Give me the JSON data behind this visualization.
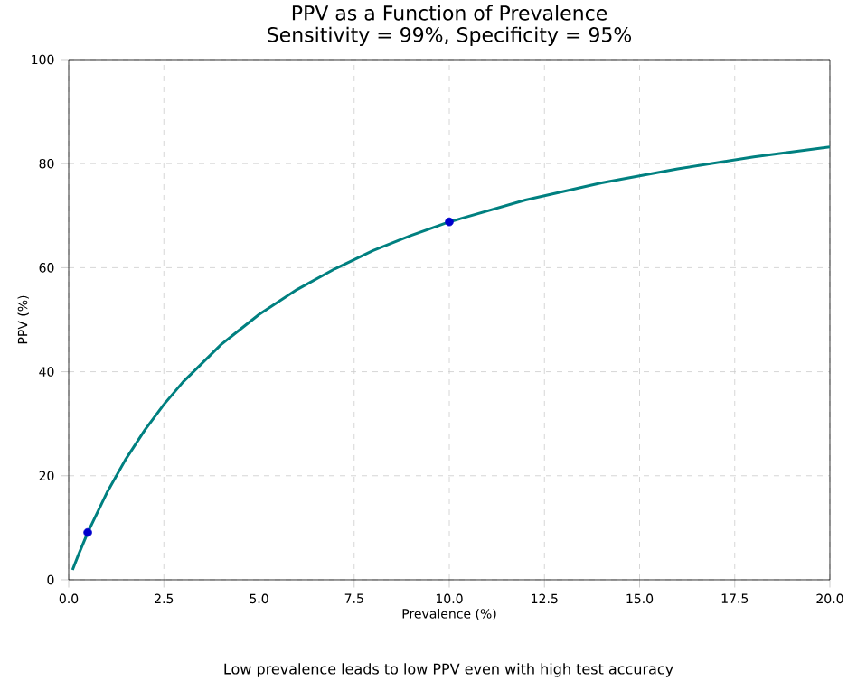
{
  "chart_data": {
    "type": "line",
    "title": "PPV as a Function of Prevalence\nSensitivity = 99%, Specificity = 95%",
    "xlabel": "Prevalence (%)",
    "ylabel": "PPV (%)",
    "x": [
      0.1,
      0.25,
      0.5,
      1,
      1.5,
      2,
      2.5,
      3,
      4,
      5,
      6,
      7,
      8,
      9,
      10,
      12,
      14,
      16,
      18,
      20
    ],
    "series": [
      {
        "color": "#008080",
        "values": [
          1.9,
          4.7,
          9.1,
          16.7,
          23.2,
          28.8,
          33.7,
          38.0,
          45.2,
          51.0,
          55.8,
          59.8,
          63.3,
          66.2,
          68.8,
          73.0,
          76.3,
          79.0,
          81.3,
          83.2
        ]
      },
      {
        "type": "scatter",
        "color": "#0000cd",
        "x": [
          0.5,
          10
        ],
        "values": [
          9.1,
          68.8
        ]
      }
    ],
    "xlim": [
      0,
      20
    ],
    "ylim": [
      0,
      100
    ],
    "xticks": [
      {
        "value": 0,
        "label": "0.0"
      },
      {
        "value": 2.5,
        "label": "2.5"
      },
      {
        "value": 5,
        "label": "5.0"
      },
      {
        "value": 7.5,
        "label": "7.5"
      },
      {
        "value": 10,
        "label": "10.0"
      },
      {
        "value": 12.5,
        "label": "12.5"
      },
      {
        "value": 15,
        "label": "15.0"
      },
      {
        "value": 17.5,
        "label": "17.5"
      },
      {
        "value": 20,
        "label": "20.0"
      }
    ],
    "yticks": [
      0,
      20,
      40,
      60,
      80,
      100
    ],
    "grid": true,
    "annotations": [
      "Low prevalence leads to low PPV even with high test accuracy"
    ]
  }
}
